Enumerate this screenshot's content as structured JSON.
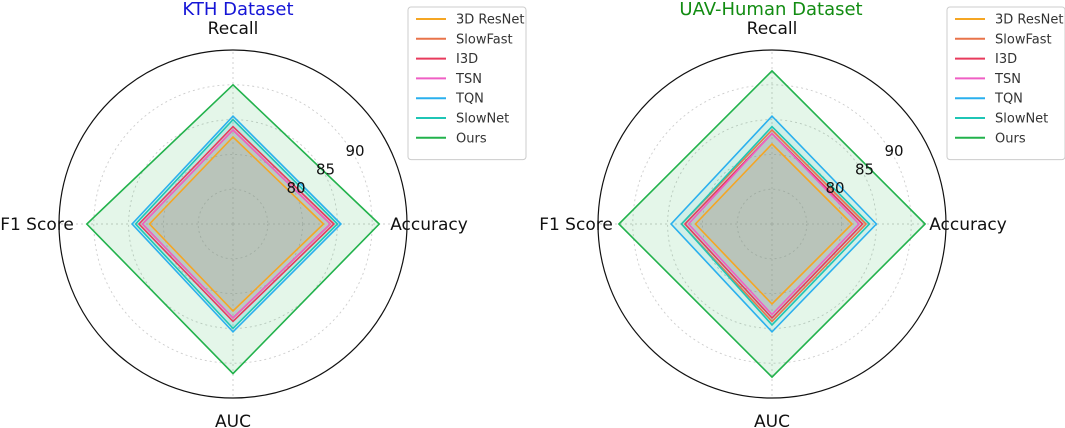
{
  "chart_data": [
    {
      "type": "radar",
      "title": "KTH Dataset",
      "title_color": "#1515d6",
      "axes": [
        "Accuracy",
        "Recall",
        "F1 Score",
        "AUC"
      ],
      "r_range": [
        70,
        95
      ],
      "r_ticks": [
        80,
        85,
        90
      ],
      "grid": true,
      "legend_position": "top-right",
      "series": [
        {
          "name": "3D ResNet",
          "color": "#f5a623",
          "values": [
            83.0,
            82.5,
            82.0,
            82.5
          ]
        },
        {
          "name": "SlowFast",
          "color": "#e8744a",
          "values": [
            84.0,
            83.5,
            83.0,
            83.5
          ]
        },
        {
          "name": "I3D",
          "color": "#e83a5c",
          "values": [
            84.5,
            84.0,
            83.5,
            84.0
          ]
        },
        {
          "name": "TSN",
          "color": "#ef5fc4",
          "values": [
            84.0,
            83.5,
            83.0,
            83.5
          ]
        },
        {
          "name": "TQN",
          "color": "#2ab0ee",
          "values": [
            85.5,
            85.5,
            84.5,
            85.5
          ]
        },
        {
          "name": "SlowNet",
          "color": "#1fc5b5",
          "values": [
            85.0,
            85.0,
            84.0,
            85.0
          ]
        },
        {
          "name": "Ours",
          "color": "#22b24c",
          "values": [
            91.0,
            90.0,
            91.0,
            91.5
          ],
          "fill": true
        }
      ]
    },
    {
      "type": "radar",
      "title": "UAV-Human Dataset",
      "title_color": "#128c12",
      "axes": [
        "Accuracy",
        "Recall",
        "F1 Score",
        "AUC"
      ],
      "r_range": [
        70,
        95
      ],
      "r_ticks": [
        80,
        85,
        90
      ],
      "grid": true,
      "legend_position": "top-right",
      "series": [
        {
          "name": "3D ResNet",
          "color": "#f5a623",
          "values": [
            81.5,
            81.5,
            81.0,
            81.5
          ]
        },
        {
          "name": "SlowFast",
          "color": "#e8744a",
          "values": [
            83.5,
            83.5,
            83.0,
            84.0
          ]
        },
        {
          "name": "I3D",
          "color": "#e83a5c",
          "values": [
            83.0,
            83.0,
            82.5,
            83.5
          ]
        },
        {
          "name": "TSN",
          "color": "#ef5fc4",
          "values": [
            82.5,
            83.0,
            82.0,
            83.0
          ]
        },
        {
          "name": "TQN",
          "color": "#2ab0ee",
          "values": [
            85.0,
            85.5,
            84.5,
            85.5
          ]
        },
        {
          "name": "SlowNet",
          "color": "#1fc5b5",
          "values": [
            84.0,
            84.0,
            83.0,
            84.5
          ]
        },
        {
          "name": "Ours",
          "color": "#22b24c",
          "values": [
            92.0,
            92.0,
            92.0,
            92.0
          ],
          "fill": true
        }
      ]
    }
  ]
}
